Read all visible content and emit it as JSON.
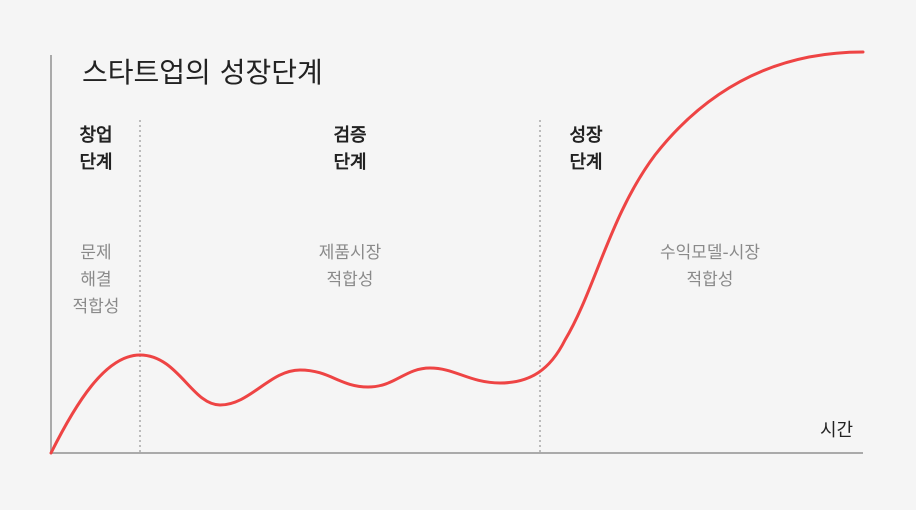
{
  "title": "스타트업의 성장단계",
  "x_axis_label": "시간",
  "stages": [
    {
      "name": "창업\n단계",
      "fit": "문제\n해결\n적합성"
    },
    {
      "name": "검증\n단계",
      "fit": "제품시장\n적합성"
    },
    {
      "name": "성장\n단계",
      "fit": "수익모델-시장\n적합성"
    }
  ],
  "colors": {
    "curve": "#ee4444",
    "axis": "#aaaaaa",
    "divider": "#aaaaaa",
    "background": "#f5f5f5"
  }
}
